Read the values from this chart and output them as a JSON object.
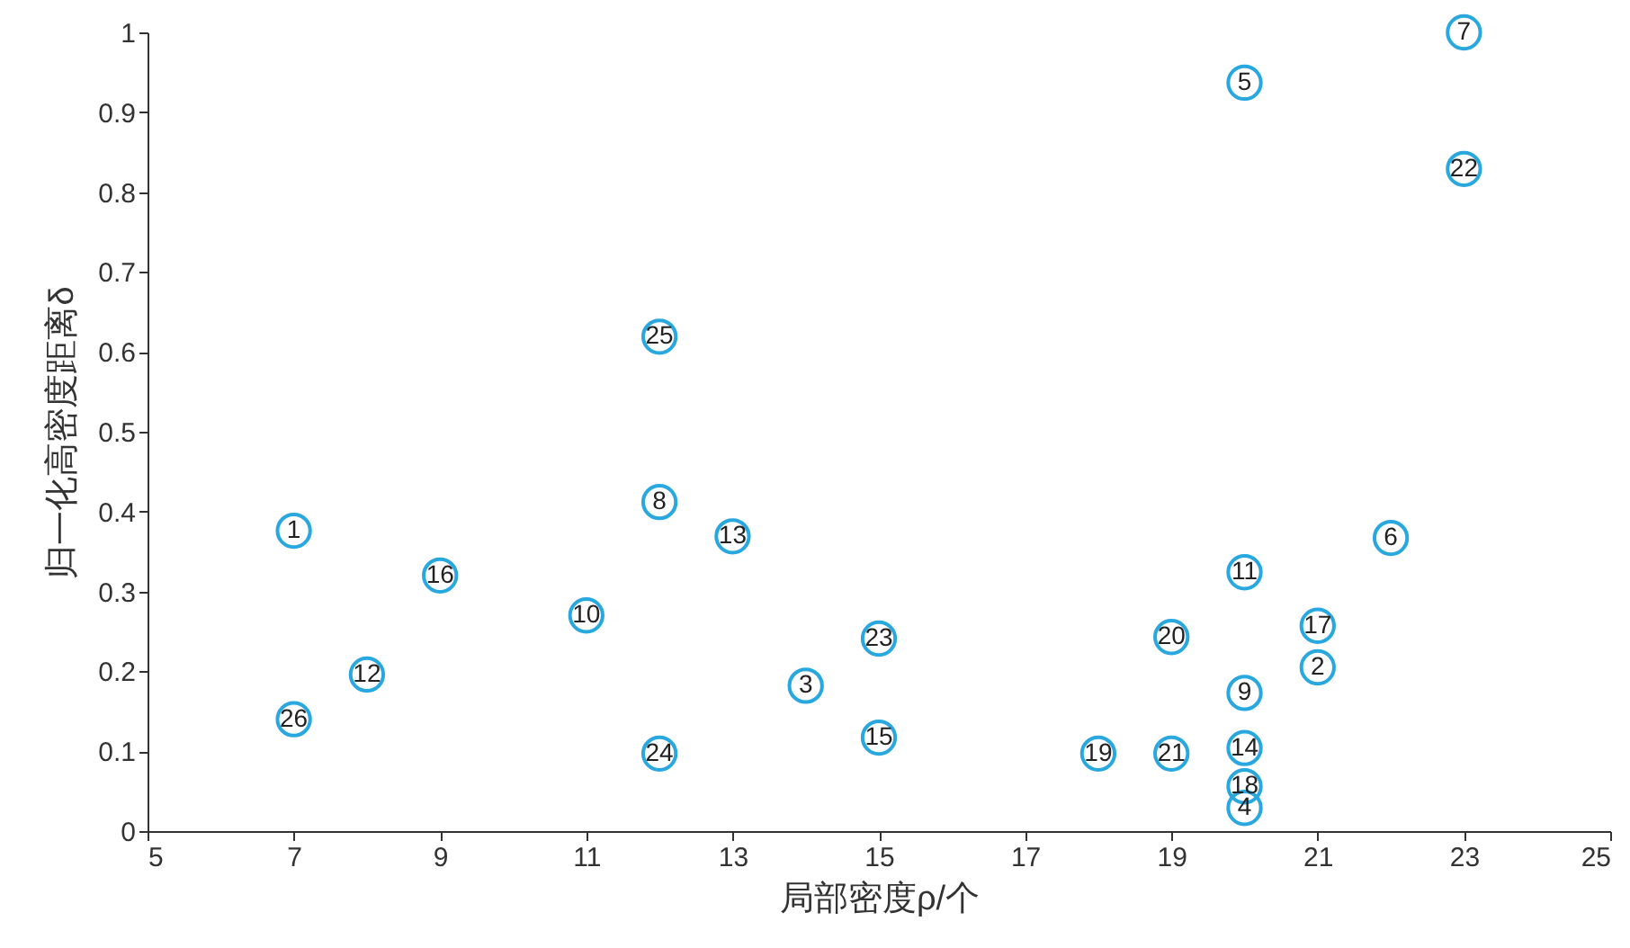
{
  "chart_data": {
    "type": "scatter",
    "xlabel": "局部密度ρ/个",
    "ylabel": "归一化高密度距离δ",
    "xlim": [
      5,
      25
    ],
    "xticks": [
      5,
      7,
      9,
      11,
      13,
      15,
      17,
      19,
      21,
      23,
      25
    ],
    "ylim": [
      0,
      1
    ],
    "yticks": [
      0,
      0.1,
      0.2,
      0.3,
      0.4,
      0.5,
      0.6,
      0.7,
      0.8,
      0.9,
      1
    ],
    "marker": "circle",
    "series": [
      {
        "color": "#29a8e0",
        "x": [
          7,
          21,
          14,
          20,
          20,
          22,
          23,
          12,
          20,
          11,
          20,
          8,
          13,
          20,
          15,
          9,
          21,
          20,
          18,
          19,
          19,
          23,
          15,
          12,
          12,
          7
        ],
        "values": [
          0.376,
          0.205,
          0.182,
          0.029,
          0.937,
          0.367,
          1.0,
          0.412,
          0.173,
          0.27,
          0.324,
          0.196,
          0.369,
          0.104,
          0.117,
          0.32,
          0.257,
          0.056,
          0.097,
          0.243,
          0.097,
          0.829,
          0.241,
          0.097,
          0.619,
          0.14
        ]
      }
    ],
    "annotations": [
      {
        "text": "1",
        "x": 7,
        "y": 0.376
      },
      {
        "text": "2",
        "x": 21,
        "y": 0.205
      },
      {
        "text": "3",
        "x": 14,
        "y": 0.182
      },
      {
        "text": "4",
        "x": 20,
        "y": 0.029
      },
      {
        "text": "5",
        "x": 20,
        "y": 0.937
      },
      {
        "text": "6",
        "x": 22,
        "y": 0.367
      },
      {
        "text": "7",
        "x": 23,
        "y": 1.0
      },
      {
        "text": "8",
        "x": 12,
        "y": 0.412
      },
      {
        "text": "9",
        "x": 20,
        "y": 0.173
      },
      {
        "text": "10",
        "x": 11,
        "y": 0.27
      },
      {
        "text": "11",
        "x": 20,
        "y": 0.324
      },
      {
        "text": "12",
        "x": 8,
        "y": 0.196
      },
      {
        "text": "13",
        "x": 13,
        "y": 0.369
      },
      {
        "text": "14",
        "x": 20,
        "y": 0.104
      },
      {
        "text": "15",
        "x": 15,
        "y": 0.117
      },
      {
        "text": "16",
        "x": 9,
        "y": 0.32
      },
      {
        "text": "17",
        "x": 21,
        "y": 0.257
      },
      {
        "text": "18",
        "x": 20,
        "y": 0.056
      },
      {
        "text": "19",
        "x": 18,
        "y": 0.097
      },
      {
        "text": "20",
        "x": 19,
        "y": 0.243
      },
      {
        "text": "21",
        "x": 19,
        "y": 0.097
      },
      {
        "text": "22",
        "x": 23,
        "y": 0.829
      },
      {
        "text": "23",
        "x": 15,
        "y": 0.241
      },
      {
        "text": "24",
        "x": 12,
        "y": 0.097
      },
      {
        "text": "25",
        "x": 12,
        "y": 0.619
      },
      {
        "text": "26",
        "x": 7,
        "y": 0.14
      }
    ]
  }
}
